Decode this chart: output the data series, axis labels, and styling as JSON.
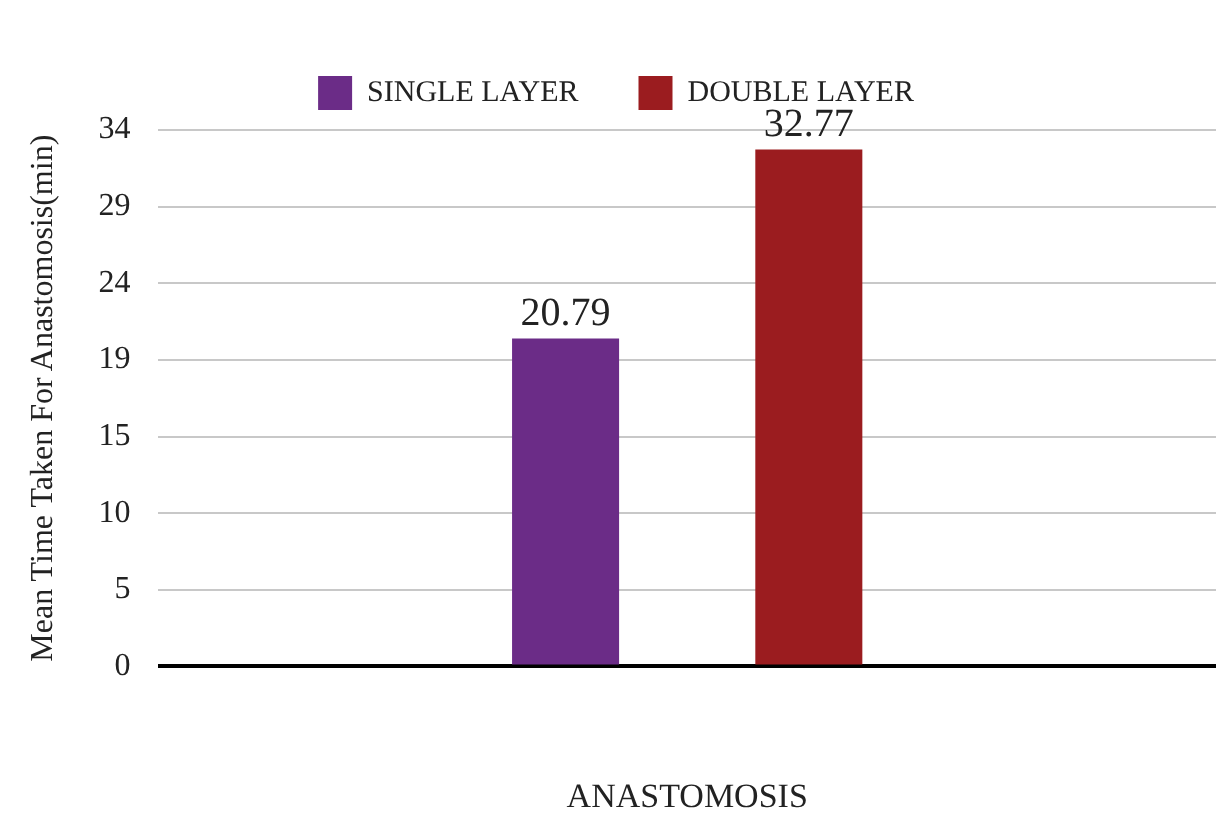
{
  "chart_data": {
    "type": "bar",
    "ylabel": "Mean Time Taken For Anastomosis(min)",
    "xlabel": "ANASTOMOSIS",
    "categories": [
      null
    ],
    "series": [
      {
        "name": "SINGLE LAYER",
        "color": "#6b2c87",
        "values": [
          20.79
        ]
      },
      {
        "name": "DOUBLE LAYER",
        "color": "#9b1c1f",
        "values": [
          32.77
        ]
      }
    ],
    "ylim": [
      0,
      34
    ],
    "yticks": [
      0,
      {
        "value": 4.857,
        "label": "5"
      },
      {
        "value": 9.714,
        "label": "10"
      },
      {
        "value": 14.571,
        "label": "15"
      },
      {
        "value": 19.429,
        "label": "19"
      },
      {
        "value": 24.286,
        "label": "24"
      },
      {
        "value": 29.143,
        "label": "29"
      },
      34
    ],
    "grid": "y",
    "legend": "top",
    "data_labels": true
  }
}
